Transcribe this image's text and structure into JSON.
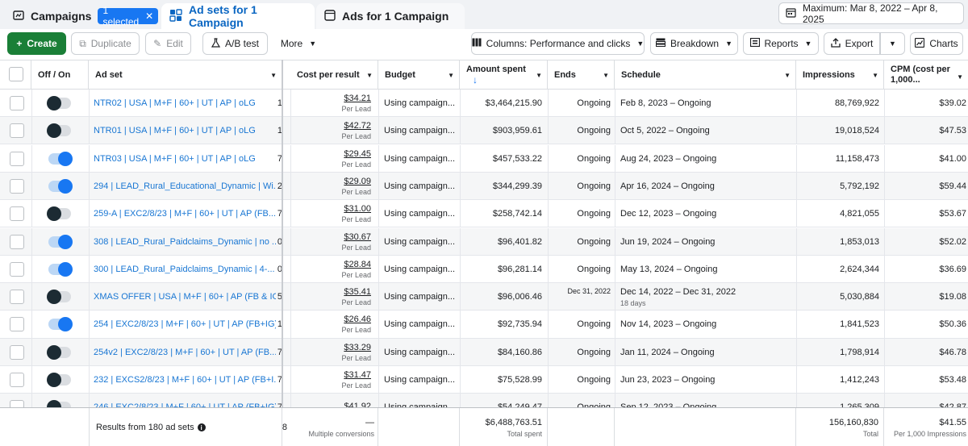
{
  "tabs": {
    "campaigns": "Campaigns",
    "selected_chip": "1 selected",
    "ad_sets": "Ad sets for 1 Campaign",
    "ads": "Ads for 1 Campaign"
  },
  "date_range": "Maximum: Mar 8, 2022 – Apr 8, 2025",
  "toolbar": {
    "create": "Create",
    "duplicate": "Duplicate",
    "edit": "Edit",
    "ab_test": "A/B test",
    "more": "More",
    "columns": "Columns: Performance and clicks",
    "breakdown": "Breakdown",
    "reports": "Reports",
    "export": "Export",
    "charts": "Charts"
  },
  "columns": {
    "off_on": "Off / On",
    "ad_set": "Ad set",
    "cost_per_result": "Cost per result",
    "budget": "Budget",
    "amount_spent": "Amount spent",
    "sort_arrow": "↓",
    "ends": "Ends",
    "schedule": "Schedule",
    "impressions": "Impressions",
    "cpm": "CPM (cost per 1,000..."
  },
  "rows": [
    {
      "on": false,
      "name": "NTR02 | USA | M+F | 60+ | UT | AP | oLG",
      "clip": "1",
      "cpr": "$34.21",
      "cpr_sub": "Per Lead",
      "budget": "Using campaign...",
      "amount": "$3,464,215.90",
      "ends": "Ongoing",
      "schedule": "Feb 8, 2023 – Ongoing",
      "schedule_sub": "",
      "impressions": "88,769,922",
      "cpm": "$39.02"
    },
    {
      "on": false,
      "name": "NTR01 | USA | M+F | 60+ | UT | AP | oLG",
      "clip": "1",
      "cpr": "$42.72",
      "cpr_sub": "Per Lead",
      "budget": "Using campaign...",
      "amount": "$903,959.61",
      "ends": "Ongoing",
      "schedule": "Oct 5, 2022 – Ongoing",
      "schedule_sub": "",
      "impressions": "19,018,524",
      "cpm": "$47.53"
    },
    {
      "on": true,
      "name": "NTR03 | USA | M+F | 60+ | UT | AP | oLG",
      "clip": "7",
      "cpr": "$29.45",
      "cpr_sub": "Per Lead",
      "budget": "Using campaign...",
      "amount": "$457,533.22",
      "ends": "Ongoing",
      "schedule": "Aug 24, 2023 – Ongoing",
      "schedule_sub": "",
      "impressions": "11,158,473",
      "cpm": "$41.00"
    },
    {
      "on": true,
      "name": "294 | LEAD_Rural_Educational_Dynamic | Wi...",
      "clip": "2",
      "cpr": "$29.09",
      "cpr_sub": "Per Lead",
      "budget": "Using campaign...",
      "amount": "$344,299.39",
      "ends": "Ongoing",
      "schedule": "Apr 16, 2024 – Ongoing",
      "schedule_sub": "",
      "impressions": "5,792,192",
      "cpm": "$59.44"
    },
    {
      "on": false,
      "name": "259-A | EXC2/8/23 | M+F | 60+ | UT | AP (FB...",
      "clip": "7",
      "cpr": "$31.00",
      "cpr_sub": "Per Lead",
      "budget": "Using campaign...",
      "amount": "$258,742.14",
      "ends": "Ongoing",
      "schedule": "Dec 12, 2023 – Ongoing",
      "schedule_sub": "",
      "impressions": "4,821,055",
      "cpm": "$53.67"
    },
    {
      "on": true,
      "name": "308 | LEAD_Rural_Paidclaims_Dynamic | no ...",
      "clip": "0",
      "cpr": "$30.67",
      "cpr_sub": "Per Lead",
      "budget": "Using campaign...",
      "amount": "$96,401.82",
      "ends": "Ongoing",
      "schedule": "Jun 19, 2024 – Ongoing",
      "schedule_sub": "",
      "impressions": "1,853,013",
      "cpm": "$52.02"
    },
    {
      "on": true,
      "name": "300 | LEAD_Rural_Paidclaims_Dynamic | 4-...",
      "clip": "0",
      "cpr": "$28.84",
      "cpr_sub": "Per Lead",
      "budget": "Using campaign...",
      "amount": "$96,281.14",
      "ends": "Ongoing",
      "schedule": "May 13, 2024 – Ongoing",
      "schedule_sub": "",
      "impressions": "2,624,344",
      "cpm": "$36.69"
    },
    {
      "on": false,
      "name": "XMAS OFFER | USA | M+F | 60+ | AP (FB & IG...",
      "clip": "5",
      "cpr": "$35.41",
      "cpr_sub": "Per Lead",
      "budget": "Using campaign...",
      "amount": "$96,006.46",
      "ends": "Dec 31, 2022",
      "schedule": "Dec 14, 2022 – Dec 31, 2022",
      "schedule_sub": "18 days",
      "impressions": "5,030,884",
      "cpm": "$19.08"
    },
    {
      "on": true,
      "name": "254 | EXC2/8/23 | M+F | 60+ | UT | AP (FB+IG)",
      "clip": "1",
      "cpr": "$26.46",
      "cpr_sub": "Per Lead",
      "budget": "Using campaign...",
      "amount": "$92,735.94",
      "ends": "Ongoing",
      "schedule": "Nov 14, 2023 – Ongoing",
      "schedule_sub": "",
      "impressions": "1,841,523",
      "cpm": "$50.36"
    },
    {
      "on": false,
      "name": "254v2 | EXC2/8/23 | M+F | 60+ | UT | AP (FB...",
      "clip": "7",
      "cpr": "$33.29",
      "cpr_sub": "Per Lead",
      "budget": "Using campaign...",
      "amount": "$84,160.86",
      "ends": "Ongoing",
      "schedule": "Jan 11, 2024 – Ongoing",
      "schedule_sub": "",
      "impressions": "1,798,914",
      "cpm": "$46.78"
    },
    {
      "on": false,
      "name": "232 | EXCS2/8/23 | M+F | 60+ | UT | AP (FB+I...",
      "clip": "7",
      "cpr": "$31.47",
      "cpr_sub": "Per Lead",
      "budget": "Using campaign...",
      "amount": "$75,528.99",
      "ends": "Ongoing",
      "schedule": "Jun 23, 2023 – Ongoing",
      "schedule_sub": "",
      "impressions": "1,412,243",
      "cpm": "$53.48"
    },
    {
      "on": false,
      "name": "246 | EXC2/8/23 | M+F | 60+ | UT | AP (FB+IG)",
      "clip": "7",
      "cpr": "$41.92",
      "cpr_sub": "",
      "budget": "Using campaign...",
      "amount": "$54,249.47",
      "ends": "Ongoing",
      "schedule": "Sep 12, 2023 – Ongoing",
      "schedule_sub": "",
      "impressions": "1,265,309",
      "cpm": "$42.87"
    }
  ],
  "footer": {
    "results": "Results from 180 ad sets",
    "clip": "8",
    "cpr": "—",
    "cpr_sub": "Multiple conversions",
    "amount": "$6,488,763.51",
    "amount_sub": "Total spent",
    "impressions": "156,160,830",
    "impressions_sub": "Total",
    "cpm": "$41.55",
    "cpm_sub": "Per 1,000 Impressions"
  },
  "colors": {
    "accent_blue": "#1877f2",
    "create_green": "#1a7f37",
    "link_blue": "#1876d3"
  }
}
